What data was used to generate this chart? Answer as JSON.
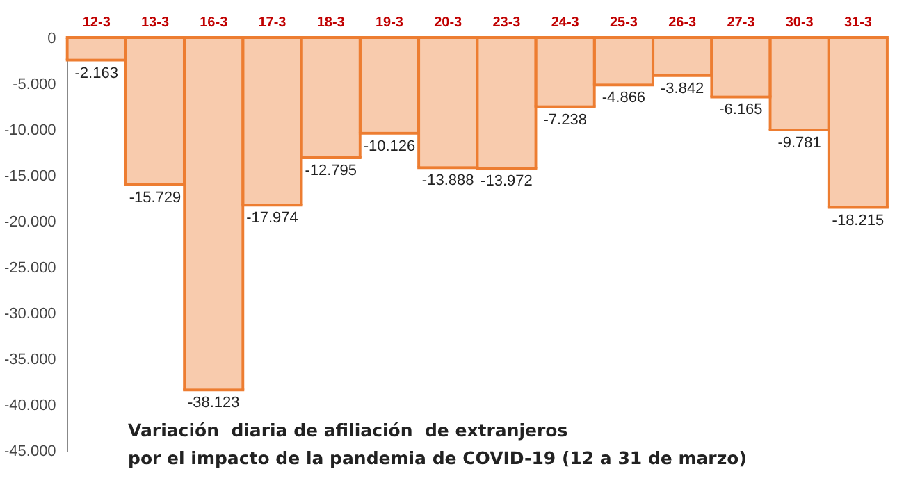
{
  "chart_data": {
    "type": "bar",
    "title": "Variación  diaria de afiliación  de extranjeros\npor el impacto de la pandemia de COVID-19 (12 a 31 de marzo)",
    "categories": [
      "12-3",
      "13-3",
      "16-3",
      "17-3",
      "18-3",
      "19-3",
      "20-3",
      "23-3",
      "24-3",
      "25-3",
      "26-3",
      "27-3",
      "30-3",
      "31-3"
    ],
    "values": [
      -2163,
      -15729,
      -38123,
      -17974,
      -12795,
      -10126,
      -13888,
      -13972,
      -7238,
      -4866,
      -3842,
      -6165,
      -9781,
      -18215
    ],
    "value_labels": [
      "-2.163",
      "-15.729",
      "-38.123",
      "-17.974",
      "-12.795",
      "-10.126",
      "-13.888",
      "-13.972",
      "-7.238",
      "-4.866",
      "-3.842",
      "-6.165",
      "-9.781",
      "-18.215"
    ],
    "color": "#f8cbad",
    "ylim": [
      -45000,
      0
    ],
    "yticks": [
      0,
      {
        "value": -5000,
        "label": "-5.000"
      },
      {
        "value": -10000,
        "label": "-10.000"
      },
      {
        "value": -15000,
        "label": "-15.000"
      },
      {
        "value": -20000,
        "label": "-20.000"
      },
      {
        "value": -25000,
        "label": "-25.000"
      },
      {
        "value": -30000,
        "label": "-30.000"
      },
      {
        "value": -35000,
        "label": "-35.000"
      },
      {
        "value": -40000,
        "label": "-40.000"
      },
      {
        "value": -45000,
        "label": "-45.000"
      }
    ],
    "grid": false,
    "legend": false
  }
}
